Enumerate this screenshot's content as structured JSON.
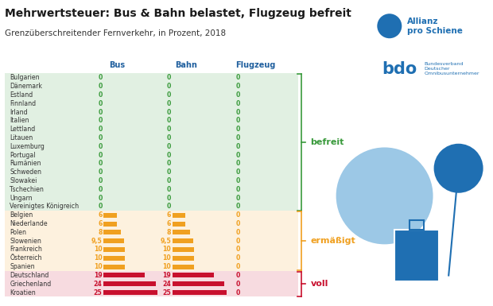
{
  "chart_data": {
    "type": "bar",
    "orientation": "horizontal",
    "title": "Mehrwertsteuer: Bus & Bahn belastet, Flugzeug befreit",
    "subtitle": "Grenzüberschreitender Fernverkehr, in Prozent, 2018",
    "data_labels": true,
    "tick_labels": false,
    "xlim": [
      0,
      25
    ],
    "series": [
      {
        "name": "Bus"
      },
      {
        "name": "Bahn"
      },
      {
        "name": "Flugzeug"
      }
    ],
    "groups": [
      {
        "label": "befreit",
        "color": "#3a9a3c",
        "rows": [
          {
            "category": "Bulgarien",
            "values": [
              0,
              0,
              0
            ]
          },
          {
            "category": "Dänemark",
            "values": [
              0,
              0,
              0
            ]
          },
          {
            "category": "Estland",
            "values": [
              0,
              0,
              0
            ]
          },
          {
            "category": "Finnland",
            "values": [
              0,
              0,
              0
            ]
          },
          {
            "category": "Irland",
            "values": [
              0,
              0,
              0
            ]
          },
          {
            "category": "Italien",
            "values": [
              0,
              0,
              0
            ]
          },
          {
            "category": "Lettland",
            "values": [
              0,
              0,
              0
            ]
          },
          {
            "category": "Litauen",
            "values": [
              0,
              0,
              0
            ]
          },
          {
            "category": "Luxemburg",
            "values": [
              0,
              0,
              0
            ]
          },
          {
            "category": "Portugal",
            "values": [
              0,
              0,
              0
            ]
          },
          {
            "category": "Rumänien",
            "values": [
              0,
              0,
              0
            ]
          },
          {
            "category": "Schweden",
            "values": [
              0,
              0,
              0
            ]
          },
          {
            "category": "Slowakei",
            "values": [
              0,
              0,
              0
            ]
          },
          {
            "category": "Tschechien",
            "values": [
              0,
              0,
              0
            ]
          },
          {
            "category": "Ungarn",
            "values": [
              0,
              0,
              0
            ]
          },
          {
            "category": "Vereinigtes Königreich",
            "values": [
              0,
              0,
              0
            ]
          }
        ]
      },
      {
        "label": "ermäßigt",
        "color": "#f0a020",
        "rows": [
          {
            "category": "Belgien",
            "values": [
              6,
              6,
              0
            ]
          },
          {
            "category": "Niederlande",
            "values": [
              6,
              6,
              0
            ]
          },
          {
            "category": "Polen",
            "values": [
              8,
              8,
              0
            ]
          },
          {
            "category": "Slowenien",
            "values": [
              9.5,
              9.5,
              0
            ],
            "value_labels": [
              "9,5",
              "9,5",
              "0"
            ]
          },
          {
            "category": "Frankreich",
            "values": [
              10,
              10,
              0
            ]
          },
          {
            "category": "Österreich",
            "values": [
              10,
              10,
              0
            ]
          },
          {
            "category": "Spanien",
            "values": [
              10,
              10,
              0
            ]
          }
        ]
      },
      {
        "label": "voll",
        "color": "#c8102e",
        "rows": [
          {
            "category": "Deutschland",
            "values": [
              19,
              19,
              0
            ]
          },
          {
            "category": "Griechenland",
            "values": [
              24,
              24,
              0
            ]
          },
          {
            "category": "Kroatien",
            "values": [
              25,
              25,
              0
            ]
          }
        ]
      }
    ],
    "annotations": [
      {
        "text": "Allianz\npro Schiene"
      },
      {
        "text": "bdo"
      },
      {
        "text": "Bundesverband\nDeutscher\nOmnibusunternehmer"
      }
    ]
  }
}
